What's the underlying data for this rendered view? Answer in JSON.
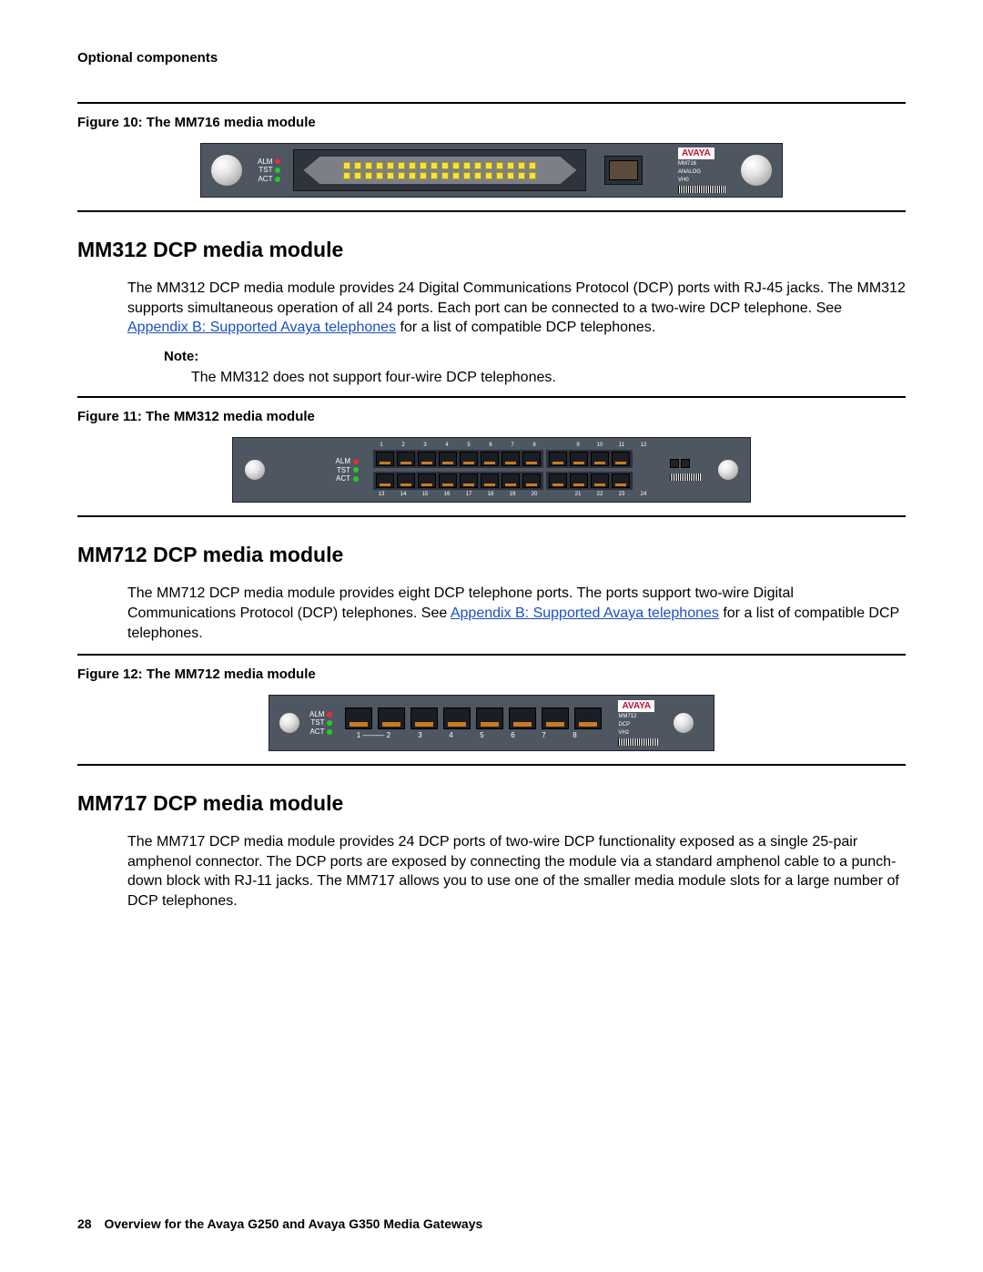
{
  "header": "Optional components",
  "figure10": {
    "caption": "Figure 10: The MM716 media module"
  },
  "mm716_module": {
    "bg": "#4e5662",
    "status": {
      "alm": "ALM",
      "tst": "TST",
      "act": "ACT"
    },
    "brand": "AVAYA",
    "side_lines": [
      "MM716",
      "ANALOG",
      "VH0"
    ],
    "pin_count_per_row": 18
  },
  "mm312": {
    "heading": "MM312 DCP media module",
    "body_a": "The MM312 DCP media module provides 24 Digital Communications Protocol (DCP) ports with RJ-45 jacks. The MM312 supports simultaneous operation of all 24 ports. Each port can be connected to a two-wire DCP telephone. See ",
    "link": "Appendix B: Supported Avaya telephones",
    "body_b": " for a list of compatible DCP telephones.",
    "note_label": "Note:",
    "note_text": "The MM312 does not support four-wire DCP telephones."
  },
  "figure11": {
    "caption": "Figure 11: The MM312 media module"
  },
  "mm312_module": {
    "status": {
      "alm": "ALM",
      "tst": "TST",
      "act": "ACT"
    },
    "top_numbers": [
      "1",
      "2",
      "3",
      "4",
      "5",
      "6",
      "7",
      "8",
      "",
      "9",
      "10",
      "11",
      "12"
    ],
    "bot_numbers": [
      "13",
      "14",
      "15",
      "16",
      "17",
      "18",
      "19",
      "20",
      "",
      "21",
      "22",
      "23",
      "24"
    ]
  },
  "mm712": {
    "heading": "MM712 DCP media module",
    "body_a": "The MM712 DCP media module provides eight DCP telephone ports. The ports support two-wire Digital Communications Protocol (DCP) telephones. See ",
    "link": "Appendix B: Supported Avaya telephones",
    "body_b": " for a list of compatible DCP telephones."
  },
  "figure12": {
    "caption": "Figure 12: The MM712 media module"
  },
  "mm712_module": {
    "status": {
      "alm": "ALM",
      "tst": "TST",
      "act": "ACT"
    },
    "brand": "AVAYA",
    "side_lines": [
      "MM712",
      "DCP",
      "VH2"
    ],
    "port_labels": [
      "1",
      "2",
      "3",
      "4",
      "5",
      "6",
      "7",
      "8"
    ]
  },
  "mm717": {
    "heading": "MM717 DCP media module",
    "body": "The MM717 DCP media module provides 24 DCP ports of two-wire DCP functionality exposed as a single 25-pair amphenol connector. The DCP ports are exposed by connecting the module via a standard amphenol cable to a punch-down block with RJ-11 jacks. The MM717 allows you to use one of the smaller media module slots for a large number of DCP telephones."
  },
  "footer": {
    "page": "28",
    "title": "Overview for the Avaya G250 and Avaya G350 Media Gateways"
  }
}
